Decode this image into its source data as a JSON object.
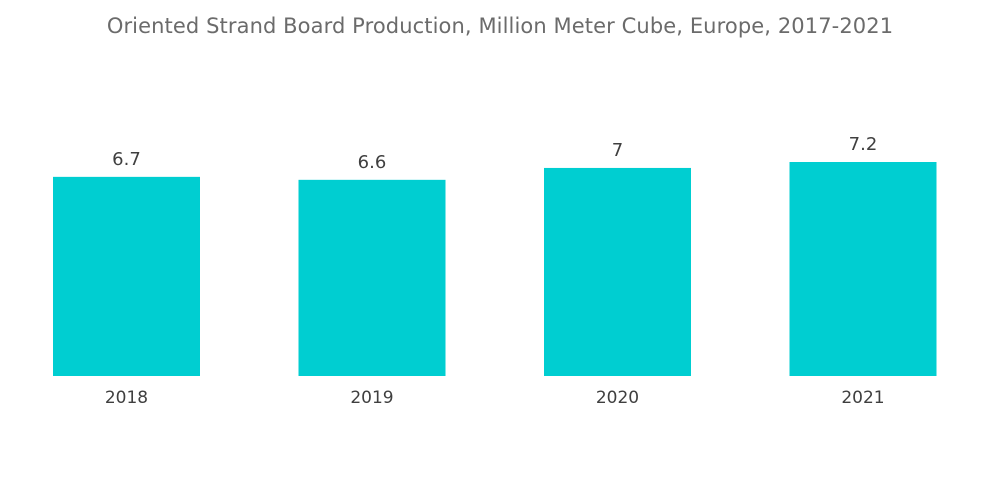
{
  "chart_data": {
    "type": "bar",
    "title": "Oriented Strand Board Production, Million Meter Cube, Europe, 2017-2021",
    "categories": [
      "2018",
      "2019",
      "2020",
      "2021"
    ],
    "values": [
      6.7,
      6.6,
      7,
      7.2
    ],
    "data_labels": [
      "6.7",
      "6.6",
      "7",
      "7.2"
    ],
    "xlabel": "",
    "ylabel": "",
    "ylim": [
      0,
      7.2
    ],
    "grid": false,
    "legend": "none",
    "colors": {
      "bar": "#00CED1"
    }
  }
}
